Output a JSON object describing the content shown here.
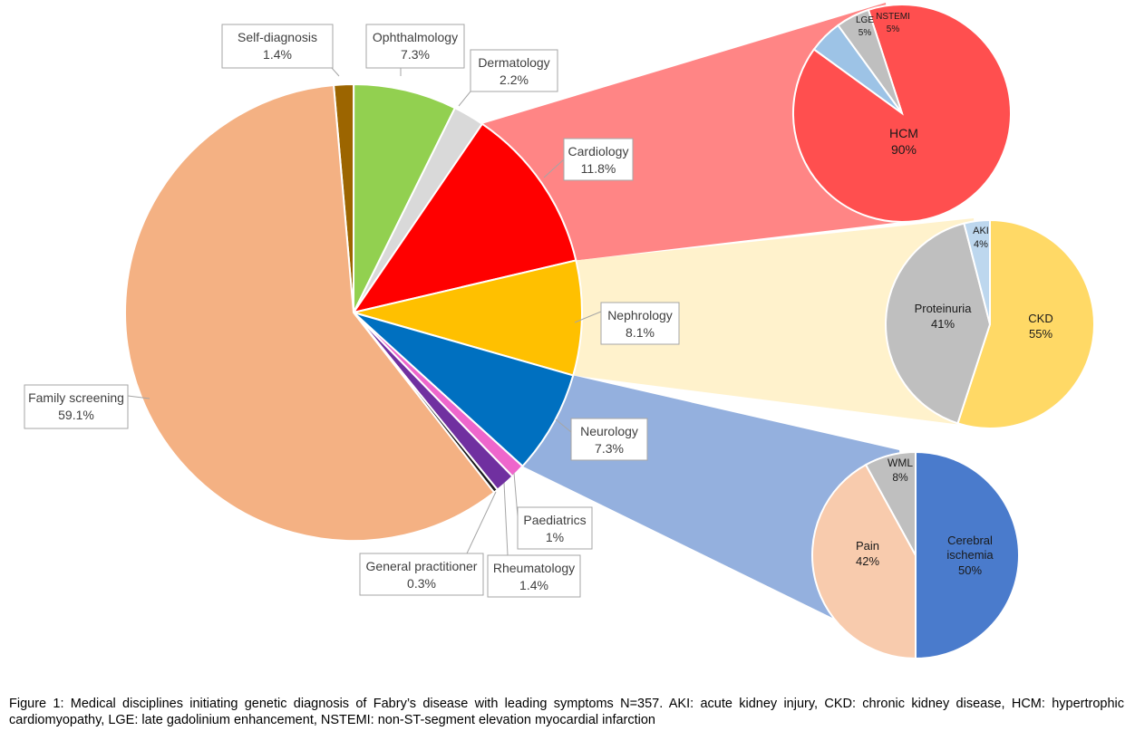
{
  "caption": "Figure 1: Medical disciplines initiating genetic diagnosis of Fabry’s disease with leading symptoms N=357. AKI: acute kidney injury, CKD: chronic kidney disease, HCM: hypertrophic cardiomyopathy, LGE: late gadolinium enhancement, NSTEMI: non-ST-segment elevation myocardial infarction",
  "chart_data": [
    {
      "type": "pie",
      "slices": [
        {
          "key": "self-diagnosis",
          "label": "Self-diagnosis",
          "pct_text": "1.4%",
          "value": 1.4,
          "color": "#9c6500"
        },
        {
          "key": "ophthalmology",
          "label": "Ophthalmology",
          "pct_text": "7.3%",
          "value": 7.3,
          "color": "#92d050"
        },
        {
          "key": "dermatology",
          "label": "Dermatology",
          "pct_text": "2.2%",
          "value": 2.2,
          "color": "#d9d9d9"
        },
        {
          "key": "cardiology",
          "label": "Cardiology",
          "pct_text": "11.8%",
          "value": 11.8,
          "color": "#ff0000"
        },
        {
          "key": "nephrology",
          "label": "Nephrology",
          "pct_text": "8.1%",
          "value": 8.1,
          "color": "#ffc000"
        },
        {
          "key": "neurology",
          "label": "Neurology",
          "pct_text": "7.3%",
          "value": 7.3,
          "color": "#0070c0"
        },
        {
          "key": "paediatrics",
          "label": "Paediatrics",
          "pct_text": "1%",
          "value": 1.0,
          "color": "#ee66cc"
        },
        {
          "key": "rheumatology",
          "label": "Rheumatology",
          "pct_text": "1.4%",
          "value": 1.4,
          "color": "#7030a0"
        },
        {
          "key": "general-practitioner",
          "label": "General practitioner",
          "pct_text": "0.3%",
          "value": 0.3,
          "color": "#1a1a1a"
        },
        {
          "key": "family-screening",
          "label": "Family screening",
          "pct_text": "59.1%",
          "value": 59.1,
          "color": "#f4b183"
        }
      ]
    },
    {
      "type": "pie",
      "parent": "Cardiology",
      "slices": [
        {
          "key": "hcm",
          "label": "HCM",
          "pct_text": "90%",
          "value": 90,
          "color": "#ff4f4f"
        },
        {
          "key": "lge",
          "label": "LGE",
          "pct_text": "5%",
          "value": 5,
          "color": "#9dc3e6"
        },
        {
          "key": "nstemi",
          "label": "NSTEMI",
          "pct_text": "5%",
          "value": 5,
          "color": "#bfbfbf"
        }
      ]
    },
    {
      "type": "pie",
      "parent": "Nephrology",
      "slices": [
        {
          "key": "ckd",
          "label": "CKD",
          "pct_text": "55%",
          "value": 55,
          "color": "#ffd966"
        },
        {
          "key": "proteinuria",
          "label": "Proteinuria",
          "pct_text": "41%",
          "value": 41,
          "color": "#bfbfbf"
        },
        {
          "key": "aki",
          "label": "AKI",
          "pct_text": "4%",
          "value": 4,
          "color": "#bdd7ee"
        }
      ]
    },
    {
      "type": "pie",
      "parent": "Neurology",
      "slices": [
        {
          "key": "cerebral-ischemia",
          "label": "Cerebral ischemia",
          "pct_text": "50%",
          "value": 50,
          "color": "#4a7bcc"
        },
        {
          "key": "pain",
          "label": "Pain",
          "pct_text": "42%",
          "value": 42,
          "color": "#f8cbad"
        },
        {
          "key": "wml",
          "label": "WML",
          "pct_text": "8%",
          "value": 8,
          "color": "#bfbfbf"
        }
      ]
    }
  ],
  "connectors": {
    "cardiology_color": "#ff8585",
    "nephrology_color": "#fff2cc",
    "neurology_color": "#94b0de"
  }
}
